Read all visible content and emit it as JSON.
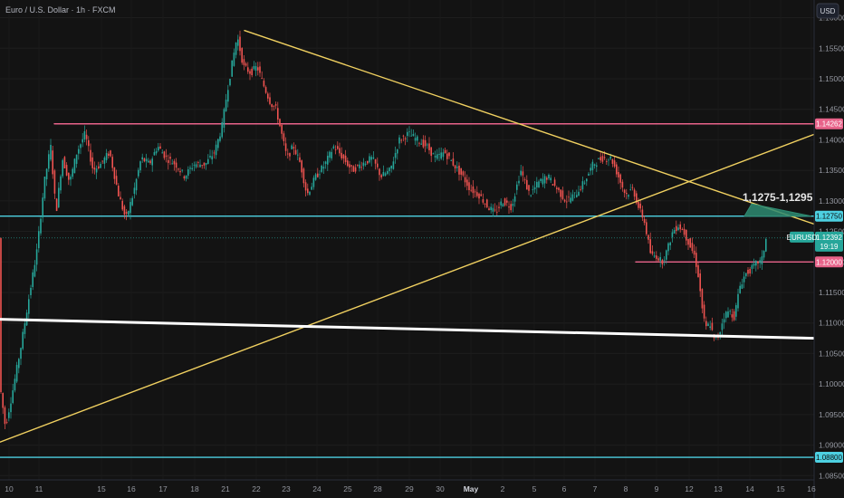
{
  "title": "Euro / U.S. Dollar · 1h · FXCM",
  "currency_button": "USD",
  "symbol_tag": "EURUSD",
  "colors": {
    "background": "#131313",
    "up": "#26a69a",
    "down": "#ef5350",
    "pink_line": "#e8638a",
    "cyan_line": "#4dd0e1",
    "yellow_line": "#f0d060",
    "white_line": "#ffffff",
    "target_fill": "#2e8b72"
  },
  "chart_data": {
    "type": "candlestick",
    "y_ticks": [
      "1.16000",
      "1.15500",
      "1.15000",
      "1.14500",
      "1.14000",
      "1.13500",
      "1.13000",
      "1.12500",
      "1.12000",
      "1.11500",
      "1.11000",
      "1.10500",
      "1.10000",
      "1.09500",
      "1.09000",
      "1.08500"
    ],
    "y_tick_values": [
      1.16,
      1.155,
      1.15,
      1.145,
      1.14,
      1.135,
      1.13,
      1.125,
      1.12,
      1.115,
      1.11,
      1.105,
      1.1,
      1.095,
      1.09,
      1.085
    ],
    "ylim": [
      1.0843,
      1.1629
    ],
    "x_ticks": [
      "10",
      "11",
      "15",
      "16",
      "17",
      "18",
      "21",
      "22",
      "23",
      "24",
      "25",
      "28",
      "29",
      "30",
      "May",
      "2",
      "5",
      "6",
      "7",
      "8",
      "9",
      "12",
      "13",
      "14",
      "15",
      "16"
    ],
    "x_bold_tick": "May",
    "price_level_labels": [
      {
        "label": "1.14262",
        "value": 1.14262,
        "line": "pink"
      },
      {
        "label": "1.12750",
        "value": 1.1275,
        "line": "cyan"
      },
      {
        "label": "1.12000",
        "value": 1.12,
        "line": "pink"
      },
      {
        "label": "1.08800",
        "value": 1.088,
        "line": "cyan"
      }
    ],
    "last_price": {
      "value": 1.12392,
      "label": "1.12392",
      "countdown": "19:19"
    },
    "annotation": "1,1275-1,1295",
    "price_path": [
      [
        0,
        1.101
      ],
      [
        7,
        1.093
      ],
      [
        14,
        1.098
      ],
      [
        24,
        1.106
      ],
      [
        34,
        1.115
      ],
      [
        42,
        1.122
      ],
      [
        50,
        1.133
      ],
      [
        57,
        1.139
      ],
      [
        63,
        1.128
      ],
      [
        70,
        1.137
      ],
      [
        78,
        1.133
      ],
      [
        86,
        1.138
      ],
      [
        95,
        1.141
      ],
      [
        104,
        1.135
      ],
      [
        112,
        1.136
      ],
      [
        122,
        1.138
      ],
      [
        132,
        1.131
      ],
      [
        140,
        1.127
      ],
      [
        148,
        1.131
      ],
      [
        157,
        1.137
      ],
      [
        166,
        1.136
      ],
      [
        175,
        1.139
      ],
      [
        185,
        1.137
      ],
      [
        195,
        1.136
      ],
      [
        205,
        1.134
      ],
      [
        215,
        1.136
      ],
      [
        228,
        1.136
      ],
      [
        238,
        1.138
      ],
      [
        246,
        1.142
      ],
      [
        252,
        1.148
      ],
      [
        258,
        1.153
      ],
      [
        263,
        1.157
      ],
      [
        270,
        1.152
      ],
      [
        278,
        1.151
      ],
      [
        285,
        1.152
      ],
      [
        292,
        1.149
      ],
      [
        300,
        1.146
      ],
      [
        306,
        1.145
      ],
      [
        312,
        1.141
      ],
      [
        318,
        1.137
      ],
      [
        325,
        1.139
      ],
      [
        333,
        1.136
      ],
      [
        340,
        1.131
      ],
      [
        350,
        1.134
      ],
      [
        360,
        1.136
      ],
      [
        370,
        1.139
      ],
      [
        380,
        1.137
      ],
      [
        390,
        1.135
      ],
      [
        400,
        1.136
      ],
      [
        412,
        1.137
      ],
      [
        422,
        1.134
      ],
      [
        432,
        1.135
      ],
      [
        442,
        1.14
      ],
      [
        452,
        1.141
      ],
      [
        462,
        1.14
      ],
      [
        472,
        1.139
      ],
      [
        482,
        1.137
      ],
      [
        492,
        1.138
      ],
      [
        502,
        1.136
      ],
      [
        512,
        1.134
      ],
      [
        520,
        1.132
      ],
      [
        530,
        1.131
      ],
      [
        540,
        1.129
      ],
      [
        548,
        1.128
      ],
      [
        556,
        1.13
      ],
      [
        566,
        1.129
      ],
      [
        576,
        1.135
      ],
      [
        586,
        1.131
      ],
      [
        596,
        1.133
      ],
      [
        606,
        1.134
      ],
      [
        616,
        1.132
      ],
      [
        626,
        1.13
      ],
      [
        636,
        1.131
      ],
      [
        646,
        1.133
      ],
      [
        656,
        1.136
      ],
      [
        666,
        1.137
      ],
      [
        676,
        1.137
      ],
      [
        684,
        1.134
      ],
      [
        692,
        1.131
      ],
      [
        700,
        1.132
      ],
      [
        706,
        1.129
      ],
      [
        712,
        1.127
      ],
      [
        716,
        1.124
      ],
      [
        720,
        1.121
      ],
      [
        726,
        1.121
      ],
      [
        732,
        1.12
      ],
      [
        738,
        1.122
      ],
      [
        744,
        1.125
      ],
      [
        750,
        1.126
      ],
      [
        756,
        1.125
      ],
      [
        762,
        1.123
      ],
      [
        768,
        1.121
      ],
      [
        772,
        1.118
      ],
      [
        776,
        1.113
      ],
      [
        780,
        1.109
      ],
      [
        785,
        1.11
      ],
      [
        790,
        1.107
      ],
      [
        795,
        1.108
      ],
      [
        800,
        1.111
      ],
      [
        806,
        1.112
      ],
      [
        812,
        1.111
      ],
      [
        818,
        1.116
      ],
      [
        824,
        1.118
      ],
      [
        832,
        1.119
      ],
      [
        838,
        1.12
      ],
      [
        842,
        1.12
      ],
      [
        847,
        1.1239
      ]
    ],
    "trendlines": [
      {
        "name": "descending-resistance",
        "color": "yellow",
        "from": [
          270,
          1.1579
        ],
        "to": [
          899,
          1.1262
        ]
      },
      {
        "name": "ascending-support",
        "color": "yellow",
        "from": [
          0,
          1.0905
        ],
        "to": [
          899,
          1.1409
        ]
      },
      {
        "name": "long-term-support",
        "color": "white",
        "from": [
          0,
          1.1106
        ],
        "to": [
          899,
          1.1075
        ]
      },
      {
        "name": "resistance-1.14262",
        "color": "pink",
        "from": [
          60,
          1.14262
        ],
        "to": [
          899,
          1.14262
        ]
      },
      {
        "name": "support-1.12750",
        "color": "cyan",
        "from": [
          0,
          1.1275
        ],
        "to": [
          899,
          1.1275
        ]
      },
      {
        "name": "support-1.12000",
        "color": "pink",
        "from": [
          702,
          1.12
        ],
        "to": [
          899,
          1.12
        ]
      },
      {
        "name": "support-1.08800",
        "color": "cyan",
        "from": [
          0,
          1.088
        ],
        "to": [
          899,
          1.088
        ]
      }
    ],
    "target_zone": {
      "from": [
        822,
        1.1275
      ],
      "peak": [
        830,
        1.1295
      ],
      "to": [
        896,
        1.1275
      ]
    }
  }
}
